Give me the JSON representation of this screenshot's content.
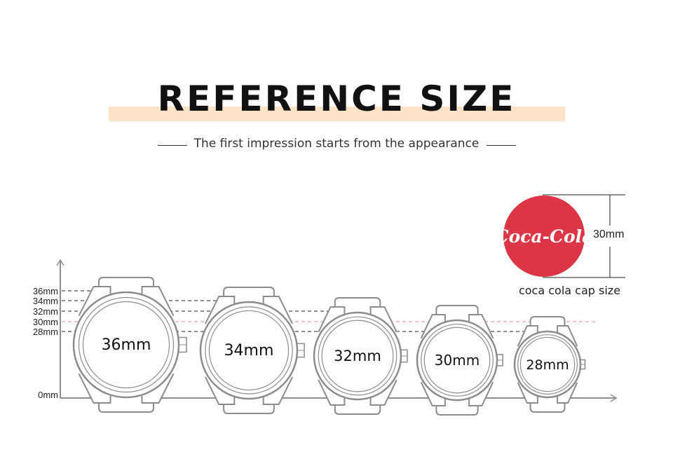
{
  "header": {
    "title": "REFERENCE SIZE",
    "subtitle": "The first impression starts from the appearance"
  },
  "axis": {
    "ticks": [
      "36mm",
      "34mm",
      "32mm",
      "30mm",
      "28mm",
      "0mm"
    ]
  },
  "watches": [
    {
      "label": "36mm",
      "size_mm": 36
    },
    {
      "label": "34mm",
      "size_mm": 34
    },
    {
      "label": "32mm",
      "size_mm": 32
    },
    {
      "label": "30mm",
      "size_mm": 30
    },
    {
      "label": "28mm",
      "size_mm": 28
    }
  ],
  "cap": {
    "logo_text": "Coca-Cola",
    "size_label": "30mm",
    "caption": "coca cola cap size",
    "color": "#dc3545"
  },
  "colors": {
    "band": "#fde3c8",
    "reference_line": "#e88a8a",
    "outline": "#8c8c8c"
  }
}
